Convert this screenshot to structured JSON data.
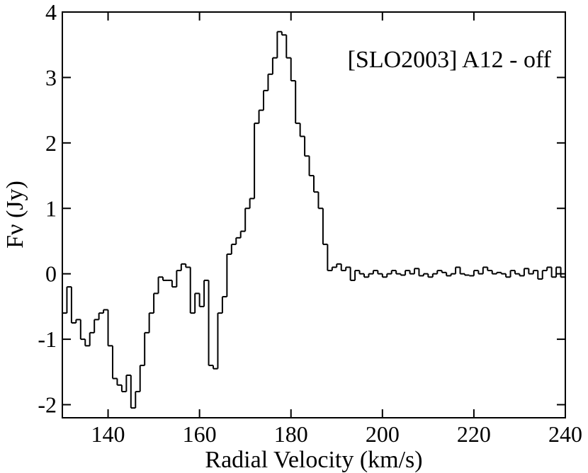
{
  "chart_data": {
    "type": "histogram",
    "x_label": "Radial Velocity (km/s)",
    "y_label": "Fν (Jy)",
    "annotation": "[SLO2003] A12 - off",
    "color": "#000000",
    "bins": [
      130,
      131,
      132,
      133,
      134,
      135,
      136,
      137,
      138,
      139,
      140,
      141,
      142,
      143,
      144,
      145,
      146,
      147,
      148,
      149,
      150,
      151,
      152,
      153,
      154,
      155,
      156,
      157,
      158,
      159,
      160,
      161,
      162,
      163,
      164,
      165,
      166,
      167,
      168,
      169,
      170,
      171,
      172,
      173,
      174,
      175,
      176,
      177,
      178,
      179,
      180,
      181,
      182,
      183,
      184,
      185,
      186,
      187,
      188,
      189,
      190,
      191,
      192,
      193,
      194,
      195,
      196,
      197,
      198,
      199,
      200,
      201,
      202,
      203,
      204,
      205,
      206,
      207,
      208,
      209,
      210,
      211,
      212,
      213,
      214,
      215,
      216,
      217,
      218,
      219,
      220,
      221,
      222,
      223,
      224,
      225,
      226,
      227,
      228,
      229,
      230,
      231,
      232,
      233,
      234,
      235,
      236,
      237,
      238,
      239,
      240
    ],
    "values": [
      -0.6,
      -0.2,
      -0.75,
      -0.7,
      -1.0,
      -1.1,
      -0.9,
      -0.7,
      -0.6,
      -0.55,
      -1.1,
      -1.6,
      -1.7,
      -1.8,
      -1.55,
      -2.05,
      -1.8,
      -1.4,
      -0.9,
      -0.6,
      -0.3,
      -0.05,
      -0.1,
      -0.1,
      -0.2,
      0.05,
      0.15,
      0.1,
      -0.6,
      -0.3,
      -0.5,
      -0.1,
      -1.4,
      -1.45,
      -0.6,
      -0.35,
      0.3,
      0.45,
      0.55,
      0.65,
      1.0,
      1.15,
      2.3,
      2.5,
      2.8,
      3.05,
      3.3,
      3.7,
      3.65,
      3.3,
      2.95,
      2.3,
      2.1,
      1.8,
      1.5,
      1.25,
      1.0,
      0.45,
      0.05,
      0.1,
      0.15,
      0.05,
      0.1,
      -0.1,
      0.05,
      0.0,
      -0.05,
      0.0,
      0.05,
      0.0,
      -0.05,
      0.0,
      0.05,
      0.0,
      -0.02,
      0.05,
      0.0,
      0.08,
      -0.03,
      0.0,
      -0.05,
      0.0,
      0.05,
      0.02,
      -0.03,
      0.0,
      0.1,
      0.0,
      -0.02,
      -0.03,
      0.05,
      0.0,
      0.1,
      0.05,
      0.0,
      0.02,
      0.0,
      -0.05,
      0.05,
      0.0,
      -0.03,
      0.08,
      0.0,
      0.05,
      -0.08,
      0.05,
      0.1,
      -0.05,
      0.1,
      -0.05
    ],
    "xlim": [
      130,
      240
    ],
    "xticks": [
      140,
      160,
      180,
      200,
      220,
      240
    ],
    "ylim": [
      -2.2,
      4
    ],
    "yticks": [
      -2,
      -1,
      0,
      1,
      2,
      3,
      4
    ]
  }
}
